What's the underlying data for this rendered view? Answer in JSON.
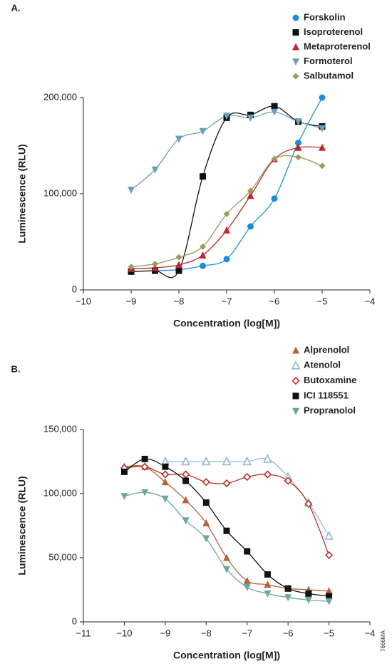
{
  "chart_data": [
    {
      "type": "scatter",
      "panel_label": "A.",
      "xlabel": "Concentration (log[M])",
      "ylabel": "Luminescence (RLU)",
      "xlim": [
        -10,
        -4
      ],
      "xticks": [
        {
          "value": -10,
          "label": "−10"
        },
        {
          "value": -9,
          "label": "−9"
        },
        {
          "value": -8,
          "label": "−8"
        },
        {
          "value": -7,
          "label": "−7"
        },
        {
          "value": -6,
          "label": "−6"
        },
        {
          "value": -5,
          "label": "−5"
        },
        {
          "value": -4,
          "label": "−4"
        }
      ],
      "ylim": [
        0,
        200000
      ],
      "yticks": [
        0,
        {
          "value": 100000,
          "label": "100,000"
        },
        {
          "value": 200000,
          "label": "200,000"
        }
      ],
      "series": [
        {
          "name": "Forskolin",
          "color": "#1b8fd2",
          "marker": "circle",
          "x": [
            -9,
            -8.5,
            -8,
            -7.5,
            -7,
            -6.5,
            -6,
            -5.5,
            -5
          ],
          "values": [
            19000,
            20000,
            21000,
            25000,
            32000,
            66000,
            95000,
            153000,
            200000
          ]
        },
        {
          "name": "Isoproterenol",
          "color": "#111111",
          "marker": "square",
          "x": [
            -9,
            -8.5,
            -8,
            -7.5,
            -7,
            -6.5,
            -6,
            -5.5,
            -5
          ],
          "values": [
            19000,
            20000,
            20000,
            118000,
            179000,
            182000,
            191000,
            175000,
            170000
          ]
        },
        {
          "name": "Metaproterenol",
          "color": "#c0272d",
          "marker": "triangle-up",
          "x": [
            -9,
            -8.5,
            -8,
            -7.5,
            -7,
            -6.5,
            -6,
            -5.5,
            -5
          ],
          "values": [
            22000,
            23000,
            26000,
            36000,
            62000,
            98000,
            136000,
            148000,
            148000
          ]
        },
        {
          "name": "Formoterol",
          "color": "#6f9fb8",
          "marker": "triangle-down",
          "x": [
            -9,
            -8.5,
            -8,
            -7.5,
            -7,
            -6.5,
            -6,
            -5.5,
            -5
          ],
          "values": [
            104000,
            125000,
            157000,
            165000,
            181000,
            179000,
            185000,
            175000,
            168000
          ]
        },
        {
          "name": "Salbutamol",
          "color": "#9c9a5e",
          "marker": "diamond",
          "x": [
            -9,
            -8.5,
            -8,
            -7.5,
            -7,
            -6.5,
            -6,
            -5.5,
            -5
          ],
          "values": [
            24000,
            27000,
            34000,
            45000,
            79000,
            103000,
            136000,
            138000,
            129000
          ]
        }
      ]
    },
    {
      "type": "scatter",
      "panel_label": "B.",
      "xlabel": "Concentration (log[M])",
      "ylabel": "Luminescence (RLU)",
      "xlim": [
        -11,
        -4
      ],
      "xticks": [
        {
          "value": -11,
          "label": "−11"
        },
        {
          "value": -10,
          "label": "−10"
        },
        {
          "value": -9,
          "label": "−9"
        },
        {
          "value": -8,
          "label": "−8"
        },
        {
          "value": -7,
          "label": "−7"
        },
        {
          "value": -6,
          "label": "−6"
        },
        {
          "value": -5,
          "label": "−5"
        },
        {
          "value": -4,
          "label": "−4"
        }
      ],
      "ylim": [
        0,
        150000
      ],
      "yticks": [
        0,
        {
          "value": 50000,
          "label": "50,000"
        },
        {
          "value": 100000,
          "label": "100,000"
        },
        {
          "value": 150000,
          "label": "150,000"
        }
      ],
      "series": [
        {
          "name": "Alprenolol",
          "color": "#b5643a",
          "marker": "triangle-up",
          "x": [
            -10,
            -9.5,
            -9,
            -8.5,
            -8,
            -7.5,
            -7,
            -6.5,
            -6,
            -5.5,
            -5
          ],
          "values": [
            121000,
            121000,
            109000,
            95000,
            77000,
            50000,
            32000,
            29000,
            26000,
            25000,
            24000
          ]
        },
        {
          "name": "Atenolol",
          "color": "#8fb8d0",
          "marker": "triangle-up-open",
          "x": [
            -9,
            -8.5,
            -8,
            -7.5,
            -7,
            -6.5,
            -6,
            -5.5,
            -5
          ],
          "values": [
            125000,
            125000,
            125000,
            125000,
            125000,
            127000,
            113000,
            93000,
            67000
          ]
        },
        {
          "name": "Butoxamine",
          "color": "#b8302e",
          "marker": "diamond-open",
          "x": [
            -10,
            -9.5,
            -9,
            -8.5,
            -8,
            -7.5,
            -7,
            -6.5,
            -6,
            -5.5,
            -5
          ],
          "values": [
            120000,
            121000,
            115000,
            115000,
            109000,
            108000,
            113000,
            115000,
            110000,
            92000,
            52000
          ]
        },
        {
          "name": "ICI 118551",
          "color": "#111111",
          "marker": "square",
          "x": [
            -10,
            -9.5,
            -9,
            -8.5,
            -8,
            -7.5,
            -7,
            -6.5,
            -6,
            -5.5,
            -5
          ],
          "values": [
            117000,
            127000,
            121000,
            110000,
            93000,
            71000,
            55000,
            37000,
            26000,
            22000,
            20000
          ]
        },
        {
          "name": "Propranolol",
          "color": "#6fa8a0",
          "marker": "triangle-down",
          "x": [
            -10,
            -9.5,
            -9,
            -8.5,
            -8,
            -7.5,
            -7,
            -6.5,
            -6,
            -5.5,
            -5
          ],
          "values": [
            98000,
            101000,
            96000,
            79000,
            65000,
            41000,
            27000,
            22000,
            19000,
            17000,
            16000
          ]
        }
      ]
    }
  ],
  "figure_code": "7666MA"
}
